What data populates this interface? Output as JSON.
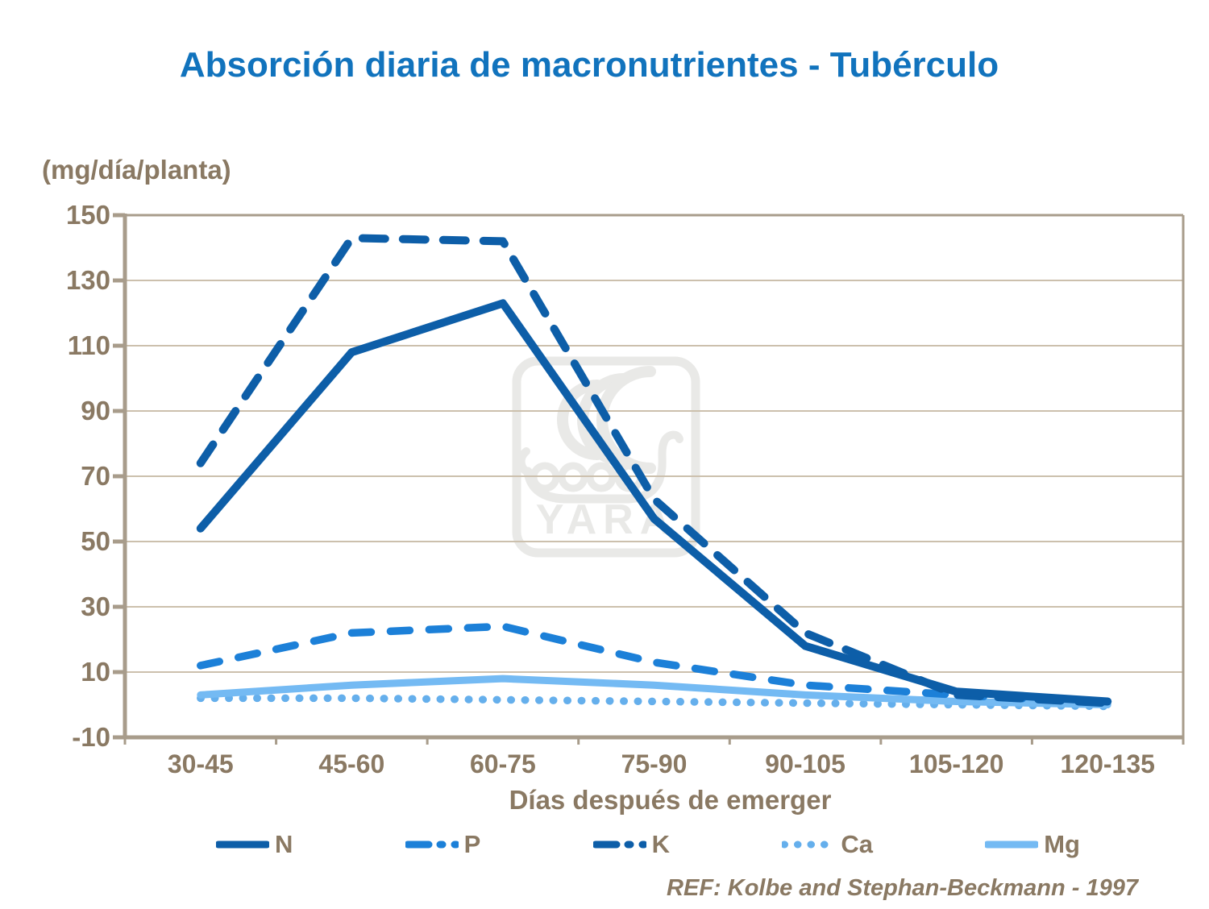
{
  "title": "Absorción diaria de macronutrientes - Tubérculo",
  "y_axis_title": "(mg/día/planta)",
  "x_axis_title": "Días después de emerger",
  "reference": "REF: Kolbe and Stephan-Beckmann - 1997",
  "watermark": {
    "label": "YARA"
  },
  "colors": {
    "title": "#1173BD",
    "text": "#8A7963",
    "grid": "#CCC0AD",
    "axis": "#A89C8B",
    "watermark": "#E9E9E7",
    "n_k_blue": "#0D5EA8",
    "p_blue": "#1C80D8",
    "ca_blue": "#65AFEC",
    "mg_blue": "#74BAF3"
  },
  "chart_data": {
    "type": "line",
    "title": "Absorción diaria de macronutrientes - Tubérculo",
    "xlabel": "Días después de emerger",
    "ylabel": "(mg/día/planta)",
    "categories": [
      "30-45",
      "45-60",
      "60-75",
      "75-90",
      "90-105",
      "105-120",
      "120-135"
    ],
    "series": [
      {
        "name": "N",
        "style": "solid",
        "color": "#0D5EA8",
        "values": [
          54,
          108,
          123,
          57,
          18,
          4,
          1
        ]
      },
      {
        "name": "P",
        "style": "dashed",
        "color": "#1C80D8",
        "values": [
          12,
          22,
          24,
          13,
          6,
          3,
          0.5
        ]
      },
      {
        "name": "K",
        "style": "dashed",
        "color": "#0D5EA8",
        "values": [
          74,
          143,
          142,
          63,
          22,
          3,
          0.5
        ]
      },
      {
        "name": "Ca",
        "style": "dotted",
        "color": "#65AFEC",
        "values": [
          2,
          2,
          1.5,
          1,
          0.5,
          0,
          -0.5
        ]
      },
      {
        "name": "Mg",
        "style": "solid",
        "color": "#74BAF3",
        "values": [
          3,
          6,
          8,
          6,
          3,
          1,
          0
        ]
      }
    ],
    "ylim": [
      -10,
      150
    ],
    "yticks": [
      150,
      130,
      110,
      90,
      70,
      50,
      30,
      10,
      -10
    ],
    "grid": true,
    "legend_position": "bottom"
  }
}
